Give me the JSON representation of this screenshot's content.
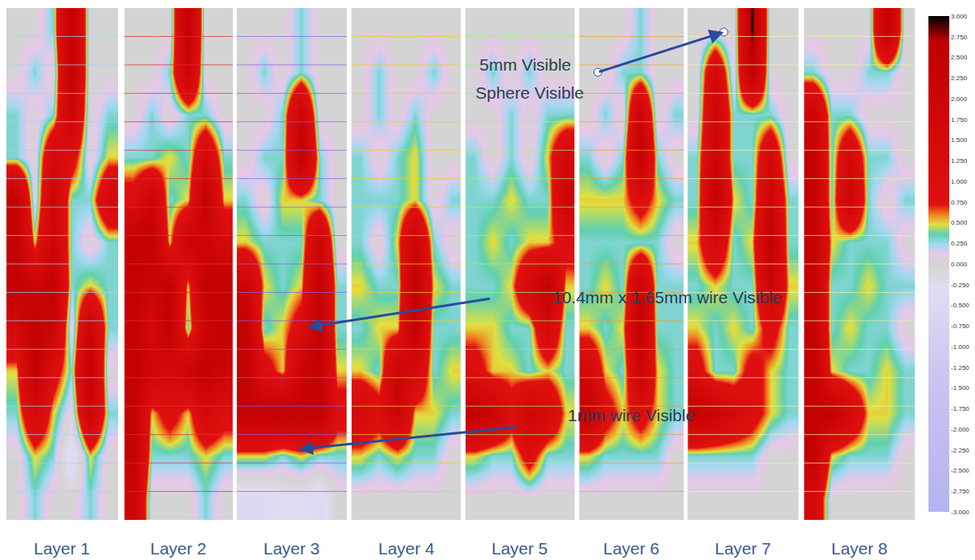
{
  "chart_data": {
    "type": "heatmap",
    "tick_labels": false,
    "panels": [
      {
        "title": "Layer 1",
        "z": [
          [
            0,
            0,
            0.3,
            2.5,
            0,
            0
          ],
          [
            0,
            0.3,
            0,
            2.5,
            0,
            0
          ],
          [
            0.3,
            0,
            0.3,
            2,
            0,
            0.3
          ],
          [
            0.3,
            0,
            1.5,
            1,
            0,
            0.5
          ],
          [
            2.5,
            0,
            2,
            0.3,
            0.3,
            1.5
          ],
          [
            2.5,
            0.5,
            2,
            0.3,
            0,
            0.3
          ],
          [
            2.5,
            2,
            2.5,
            0.3,
            0.5,
            0.3
          ],
          [
            1.5,
            2.5,
            2,
            0,
            2,
            0.3
          ],
          [
            0.5,
            2.5,
            1,
            0.3,
            2.5,
            0
          ],
          [
            0.3,
            1.5,
            0.5,
            0,
            2,
            0.3
          ],
          [
            0,
            0.5,
            0.3,
            -0.5,
            0.5,
            0
          ],
          [
            0,
            0.3,
            0,
            0,
            0.3,
            0
          ]
        ]
      },
      {
        "title": "Layer 2",
        "z": [
          [
            0,
            0,
            0,
            2.5,
            0,
            0
          ],
          [
            0,
            0,
            0.3,
            2,
            0,
            0
          ],
          [
            0,
            0.3,
            0,
            0.3,
            0.3,
            0
          ],
          [
            0.3,
            0.3,
            0.5,
            0.3,
            1.5,
            0.3
          ],
          [
            1,
            2,
            0.3,
            0.5,
            2.5,
            0.5
          ],
          [
            2.5,
            2.5,
            0.5,
            2,
            2,
            1.5
          ],
          [
            2.5,
            2,
            2.5,
            0.5,
            2.5,
            2.5
          ],
          [
            2.5,
            1.5,
            2.5,
            0.3,
            2,
            2.5
          ],
          [
            2.5,
            2,
            1.5,
            2,
            2.5,
            2
          ],
          [
            2.5,
            0.5,
            1,
            0.5,
            1.5,
            1
          ],
          [
            2.5,
            0.3,
            0.3,
            0.3,
            0.5,
            0.3
          ],
          [
            2,
            0,
            0,
            0,
            0.3,
            0
          ]
        ]
      },
      {
        "title": "Layer 3",
        "z": [
          [
            0,
            0,
            0,
            0.3,
            0,
            0
          ],
          [
            0,
            0.3,
            0,
            0.3,
            0,
            0
          ],
          [
            0,
            0,
            0.3,
            2,
            0,
            0
          ],
          [
            0,
            0.3,
            0.3,
            2.5,
            0.3,
            0
          ],
          [
            0.3,
            0,
            0.5,
            0.5,
            0.3,
            0
          ],
          [
            0.5,
            0.3,
            0.3,
            0.3,
            2,
            0
          ],
          [
            2,
            0.5,
            0.3,
            0.5,
            2.5,
            0.3
          ],
          [
            2.5,
            0.3,
            0.5,
            1,
            2.5,
            0.3
          ],
          [
            2.5,
            1,
            0.5,
            2,
            2.5,
            0.5
          ],
          [
            2.5,
            2.5,
            2.5,
            2.5,
            2.5,
            1
          ],
          [
            0.5,
            0.5,
            0.3,
            0.5,
            0.3,
            0.3
          ],
          [
            -0.5,
            -0.5,
            -0.3,
            -0.3,
            -0.5,
            0
          ]
        ]
      },
      {
        "title": "Layer 4",
        "z": [
          [
            0,
            0,
            0,
            0,
            0,
            0
          ],
          [
            0,
            0.3,
            0,
            0,
            0.3,
            0
          ],
          [
            0,
            0.3,
            0,
            0.3,
            0,
            0
          ],
          [
            0.3,
            0,
            0.3,
            0.5,
            0,
            0
          ],
          [
            0.3,
            0.3,
            0.3,
            0.5,
            0,
            0.3
          ],
          [
            0.3,
            0,
            0.5,
            2,
            0.3,
            0
          ],
          [
            0.5,
            0.3,
            0.3,
            2.5,
            0.5,
            0.3
          ],
          [
            0.3,
            0.5,
            0.5,
            2.5,
            0.3,
            0.3
          ],
          [
            0.5,
            0.3,
            2,
            1.5,
            0.3,
            0.5
          ],
          [
            1.5,
            1,
            2,
            0.5,
            0.5,
            0.3
          ],
          [
            0.5,
            0.3,
            0.5,
            0.3,
            0.3,
            0
          ],
          [
            0,
            0,
            0,
            0,
            0,
            0
          ]
        ]
      },
      {
        "title": "Layer 5",
        "z": [
          [
            0,
            0,
            0,
            0,
            0,
            0
          ],
          [
            0,
            0.3,
            0,
            0.3,
            0,
            0
          ],
          [
            0,
            0,
            0.3,
            0,
            0.3,
            0.3
          ],
          [
            0.3,
            0,
            0.3,
            0,
            0.5,
            1.5
          ],
          [
            0.3,
            0.3,
            0.5,
            0.3,
            0.3,
            2
          ],
          [
            0.3,
            0.5,
            0.3,
            0.5,
            0.5,
            1
          ],
          [
            0.3,
            0.3,
            0.5,
            1.5,
            2.5,
            0.5
          ],
          [
            0.5,
            0.5,
            0.3,
            0.3,
            1.5,
            0.3
          ],
          [
            1,
            0.5,
            0.5,
            0.3,
            0.5,
            0.3
          ],
          [
            2.5,
            2,
            1,
            2,
            1.5,
            0.5
          ],
          [
            0.5,
            0.3,
            0.3,
            1,
            0.3,
            0.3
          ],
          [
            0,
            0,
            0,
            0,
            0,
            0
          ]
        ]
      },
      {
        "title": "Layer 6",
        "z": [
          [
            0,
            0,
            0,
            0.3,
            0,
            0
          ],
          [
            0,
            0,
            0.3,
            0.3,
            0,
            0
          ],
          [
            0,
            0.3,
            0,
            2,
            0,
            0.3
          ],
          [
            0.3,
            0,
            0.3,
            2.5,
            0.3,
            0
          ],
          [
            0.5,
            0.5,
            0.5,
            1,
            0.5,
            0.3
          ],
          [
            0.3,
            0.3,
            0.3,
            0.3,
            0.3,
            0
          ],
          [
            0.3,
            0.5,
            0.3,
            2,
            0.3,
            0.3
          ],
          [
            0.5,
            0.3,
            0.5,
            2.5,
            0.3,
            0.3
          ],
          [
            1.5,
            0.5,
            0.3,
            2,
            0.5,
            0.3
          ],
          [
            2.5,
            1,
            0.5,
            1,
            0.5,
            0.3
          ],
          [
            0.5,
            0.3,
            0.3,
            0.3,
            0.3,
            0
          ],
          [
            0,
            0,
            0,
            0,
            0,
            0
          ]
        ]
      },
      {
        "title": "Layer 7",
        "z": [
          [
            0,
            0,
            0,
            3,
            0,
            0
          ],
          [
            0,
            1.5,
            0,
            2.5,
            0,
            0
          ],
          [
            0,
            2,
            0.3,
            0.3,
            0.3,
            0
          ],
          [
            0.3,
            2,
            0.3,
            0.3,
            1.5,
            0
          ],
          [
            0.3,
            2.5,
            0.5,
            0.3,
            2,
            0.3
          ],
          [
            0.5,
            1.5,
            0.3,
            0.5,
            2.5,
            0.3
          ],
          [
            0.3,
            0.5,
            0.3,
            0.3,
            2,
            0.5
          ],
          [
            0.5,
            0.3,
            0.5,
            0.3,
            1,
            0.3
          ],
          [
            1,
            0.3,
            0.3,
            1,
            0.5,
            0.3
          ],
          [
            2.5,
            2,
            1.5,
            1,
            0.5,
            0.3
          ],
          [
            0.3,
            0.3,
            0.3,
            0.3,
            0,
            0
          ],
          [
            0,
            0,
            0,
            0,
            0,
            0
          ]
        ]
      },
      {
        "title": "Layer 8",
        "z": [
          [
            0,
            0,
            0,
            0,
            2.5,
            0
          ],
          [
            0.3,
            0,
            0,
            0.3,
            0.3,
            0
          ],
          [
            2,
            0.3,
            0.3,
            0,
            0,
            0
          ],
          [
            2.5,
            0.3,
            1.5,
            0.3,
            0.3,
            0
          ],
          [
            2.5,
            0.3,
            2,
            0.3,
            0,
            0.3
          ],
          [
            2.5,
            0.5,
            0.3,
            0.3,
            0.3,
            0
          ],
          [
            2.5,
            0.3,
            0.3,
            0.5,
            0.3,
            0.3
          ],
          [
            2.5,
            0.3,
            0.5,
            0.3,
            0.3,
            0
          ],
          [
            2.5,
            0.5,
            0.3,
            0.3,
            0.5,
            0.3
          ],
          [
            2.5,
            2.5,
            1.5,
            0.5,
            0.5,
            0.3
          ],
          [
            2.5,
            0.5,
            0.3,
            0.3,
            0.3,
            0
          ],
          [
            1.5,
            0,
            0,
            0,
            0,
            0
          ]
        ]
      }
    ],
    "colorbar": {
      "range": [
        -3,
        3
      ],
      "ticks": [
        {
          "value": 3,
          "label": "3.000"
        },
        {
          "value": 2.75,
          "label": "2.750"
        },
        {
          "value": 2.5,
          "label": "2.500"
        },
        {
          "value": 2.25,
          "label": "2.250"
        },
        {
          "value": 2,
          "label": "2.000"
        },
        {
          "value": 1.75,
          "label": "1.750"
        },
        {
          "value": 1.5,
          "label": "1.500"
        },
        {
          "value": 1.25,
          "label": "1.250"
        },
        {
          "value": 1,
          "label": "1.000"
        },
        {
          "value": 0.75,
          "label": "0.750"
        },
        {
          "value": 0.5,
          "label": "0.500"
        },
        {
          "value": 0.25,
          "label": "0.250"
        },
        {
          "value": 0,
          "label": "0.000"
        },
        {
          "value": -0.25,
          "label": "-0.250"
        },
        {
          "value": -0.5,
          "label": "-0.500"
        },
        {
          "value": -0.75,
          "label": "-0.750"
        },
        {
          "value": -1,
          "label": "-1.000"
        },
        {
          "value": -1.25,
          "label": "-1.250"
        },
        {
          "value": -1.5,
          "label": "-1.500"
        },
        {
          "value": -1.75,
          "label": "-1.750"
        },
        {
          "value": -2,
          "label": "-2.000"
        },
        {
          "value": -2.25,
          "label": "-2.250"
        },
        {
          "value": -2.5,
          "label": "-2.500"
        },
        {
          "value": -2.75,
          "label": "-2.750"
        },
        {
          "value": -3,
          "label": "-3.000"
        }
      ]
    },
    "annotations": [
      "5mm Visible",
      "Sphere Visible",
      "10.4mm x 1.65mm wire Visible",
      "1mm wire Visible"
    ]
  }
}
